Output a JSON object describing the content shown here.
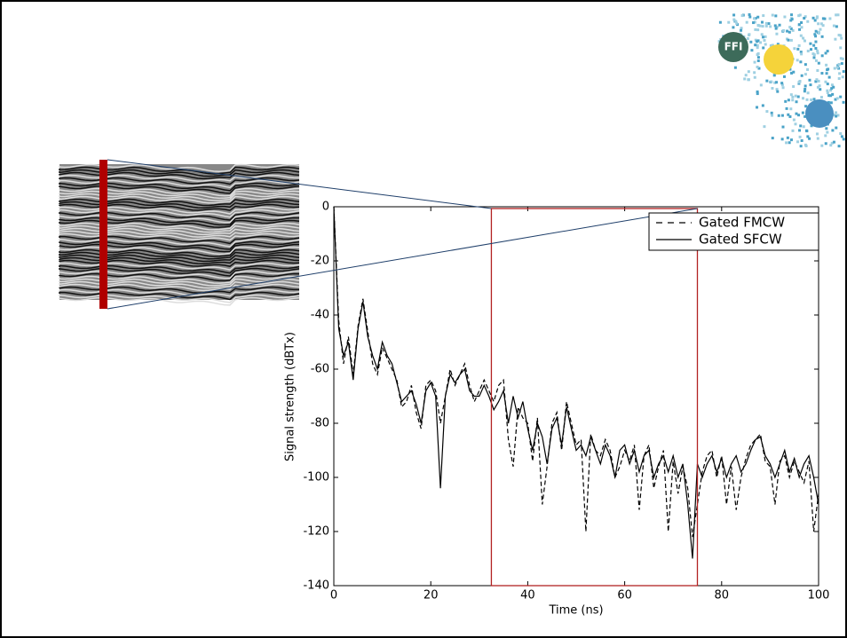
{
  "logo": {
    "text": "FFI"
  },
  "chart_data": {
    "type": "line",
    "x_label": "Time (ns)",
    "y_label": "Signal strength (dBTx)",
    "xlim": [
      0,
      100
    ],
    "ylim": [
      -140,
      0
    ],
    "xticks": [
      0,
      20,
      40,
      60,
      80,
      100
    ],
    "yticks": [
      0,
      -20,
      -40,
      -60,
      -80,
      -100,
      -120,
      -140
    ],
    "gate": [
      32.5,
      75
    ],
    "gate_color": "#b22222",
    "legend": "upper right",
    "x": [
      0,
      1,
      2,
      3,
      4,
      5,
      6,
      7,
      8,
      9,
      10,
      11,
      12,
      13,
      14,
      15,
      16,
      17,
      18,
      19,
      20,
      21,
      22,
      23,
      24,
      25,
      26,
      27,
      28,
      29,
      30,
      31,
      32,
      33,
      34,
      35,
      36,
      37,
      38,
      39,
      40,
      41,
      42,
      43,
      44,
      45,
      46,
      47,
      48,
      49,
      50,
      51,
      52,
      53,
      54,
      55,
      56,
      57,
      58,
      59,
      60,
      61,
      62,
      63,
      64,
      65,
      66,
      67,
      68,
      69,
      70,
      71,
      72,
      73,
      74,
      75,
      76,
      77,
      78,
      79,
      80,
      81,
      82,
      83,
      84,
      85,
      86,
      87,
      88,
      89,
      90,
      91,
      92,
      93,
      94,
      95,
      96,
      97,
      98,
      99,
      100
    ],
    "series": [
      {
        "name": "Gated FMCW",
        "color": "#000000",
        "linestyle": "dashed",
        "values": [
          0,
          -42,
          -58,
          -48,
          -62,
          -44,
          -34,
          -46,
          -58,
          -62,
          -52,
          -56,
          -60,
          -64,
          -74,
          -72,
          -66,
          -76,
          -82,
          -66,
          -64,
          -68,
          -80,
          -70,
          -60,
          -66,
          -62,
          -58,
          -66,
          -72,
          -68,
          -64,
          -68,
          -72,
          -66,
          -64,
          -86,
          -96,
          -74,
          -78,
          -80,
          -94,
          -78,
          -110,
          -96,
          -80,
          -76,
          -90,
          -72,
          -80,
          -88,
          -86,
          -120,
          -84,
          -90,
          -92,
          -86,
          -90,
          -100,
          -96,
          -90,
          -94,
          -88,
          -112,
          -92,
          -88,
          -104,
          -96,
          -90,
          -120,
          -94,
          -106,
          -96,
          -104,
          -122,
          -110,
          -98,
          -92,
          -90,
          -100,
          -92,
          -110,
          -96,
          -112,
          -100,
          -93,
          -88,
          -86,
          -84,
          -94,
          -96,
          -110,
          -94,
          -92,
          -100,
          -94,
          -98,
          -102,
          -94,
          -120,
          -106
        ]
      },
      {
        "name": "Gated SFCW",
        "color": "#000000",
        "linestyle": "solid",
        "values": [
          0,
          -45,
          -55,
          -50,
          -64,
          -45,
          -35,
          -48,
          -55,
          -60,
          -50,
          -55,
          -58,
          -65,
          -72,
          -70,
          -68,
          -73,
          -80,
          -68,
          -65,
          -70,
          -104,
          -70,
          -62,
          -65,
          -62,
          -60,
          -68,
          -70,
          -70,
          -66,
          -70,
          -75,
          -72,
          -68,
          -80,
          -70,
          -78,
          -72,
          -82,
          -90,
          -80,
          -85,
          -95,
          -82,
          -78,
          -88,
          -74,
          -82,
          -90,
          -88,
          -92,
          -85,
          -90,
          -95,
          -88,
          -92,
          -100,
          -90,
          -88,
          -95,
          -90,
          -98,
          -92,
          -90,
          -100,
          -95,
          -92,
          -98,
          -92,
          -100,
          -95,
          -110,
          -130,
          -95,
          -100,
          -95,
          -92,
          -98,
          -93,
          -100,
          -95,
          -92,
          -98,
          -95,
          -90,
          -86,
          -85,
          -92,
          -95,
          -100,
          -95,
          -90,
          -98,
          -93,
          -100,
          -95,
          -92,
          -100,
          -110
        ]
      }
    ]
  }
}
